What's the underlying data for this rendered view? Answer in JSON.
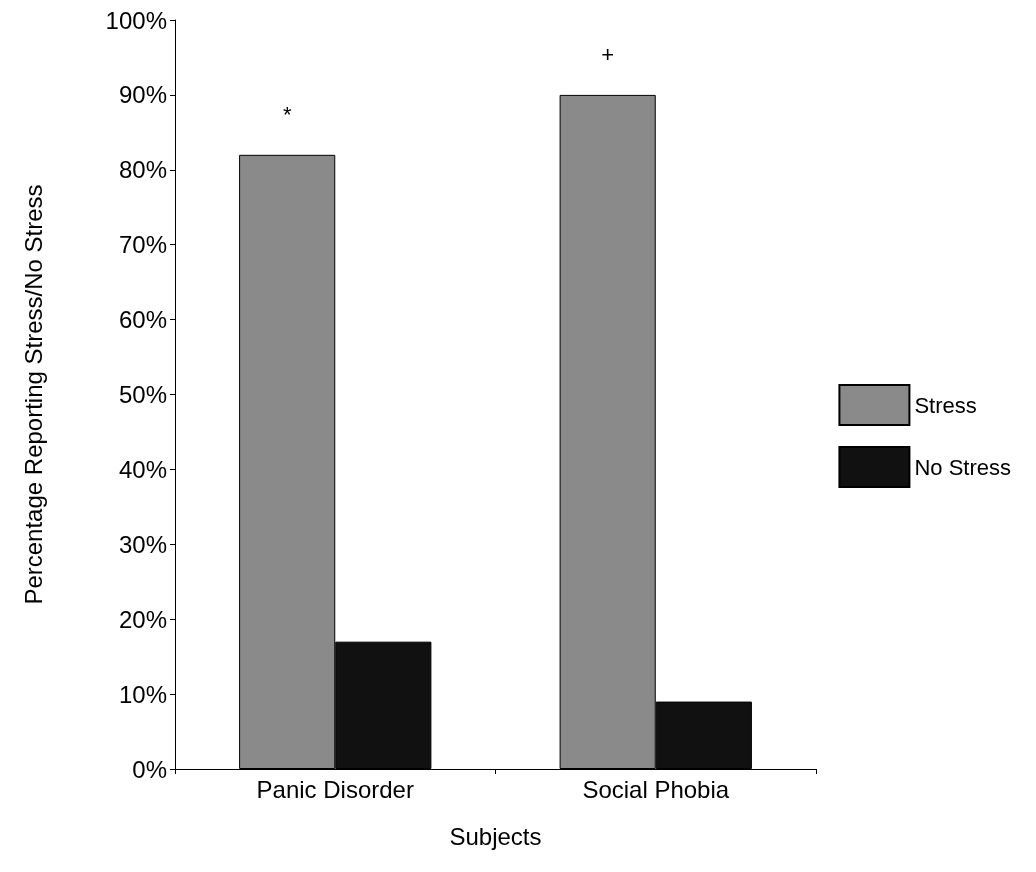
{
  "chart_data": {
    "type": "bar",
    "xlabel": "Subjects",
    "ylabel": "Percentage Reporting Stress/No Stress",
    "categories": [
      "Panic Disorder",
      "Social Phobia"
    ],
    "series": [
      {
        "name": "Stress",
        "color": "#8a8a8a",
        "values": [
          82,
          90
        ]
      },
      {
        "name": "No Stress",
        "color": "#111111",
        "values": [
          17,
          9
        ]
      }
    ],
    "ylim": [
      0,
      100
    ],
    "yticks": [
      {
        "value": 0,
        "label": "0%"
      },
      {
        "value": 10,
        "label": "10%"
      },
      {
        "value": 20,
        "label": "20%"
      },
      {
        "value": 30,
        "label": "30%"
      },
      {
        "value": 40,
        "label": "40%"
      },
      {
        "value": 50,
        "label": "50%"
      },
      {
        "value": 60,
        "label": "60%"
      },
      {
        "value": 70,
        "label": "70%"
      },
      {
        "value": 80,
        "label": "80%"
      },
      {
        "value": 90,
        "label": "90%"
      },
      {
        "value": 100,
        "label": "100%"
      }
    ],
    "annotations": [
      "*",
      "+"
    ],
    "grid": false,
    "legend": "right"
  }
}
